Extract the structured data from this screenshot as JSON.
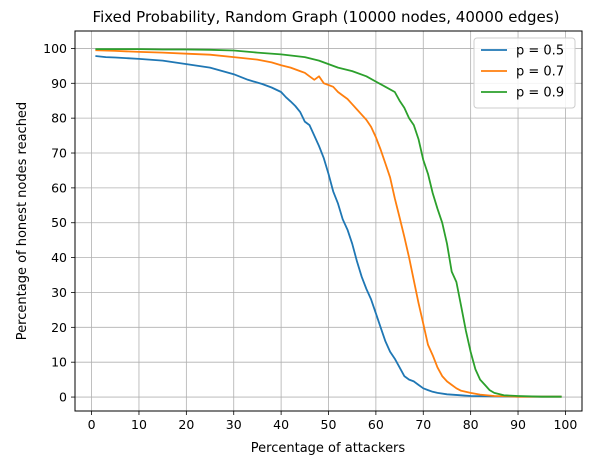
{
  "chart_data": {
    "type": "line",
    "title": "Fixed Probability, Random Graph (10000 nodes, 40000 edges)",
    "xlabel": "Percentage of attackers",
    "ylabel": "Percentage of honest nodes reached",
    "xlim": [
      -3.5,
      103.5
    ],
    "ylim": [
      -4,
      105
    ],
    "xticks": [
      0,
      10,
      20,
      30,
      40,
      50,
      60,
      70,
      80,
      90,
      100
    ],
    "yticks": [
      0,
      10,
      20,
      30,
      40,
      50,
      60,
      70,
      80,
      90,
      100
    ],
    "grid": true,
    "legend_position": "top-right",
    "series": [
      {
        "name": "p = 0.5",
        "color": "#1f77b4",
        "x": [
          1,
          3,
          5,
          10,
          15,
          20,
          25,
          30,
          33,
          36,
          38,
          40,
          41,
          42,
          43,
          44,
          45,
          46,
          47,
          48,
          49,
          50,
          51,
          52,
          53,
          54,
          55,
          56,
          57,
          58,
          59,
          60,
          61,
          62,
          63,
          64,
          65,
          66,
          67,
          68,
          69,
          70,
          71,
          72,
          73,
          75,
          78,
          80,
          85,
          90,
          95,
          99
        ],
        "values": [
          97.8,
          97.5,
          97.4,
          97.0,
          96.5,
          95.5,
          94.5,
          92.6,
          91.0,
          89.8,
          88.8,
          87.5,
          86.0,
          84.8,
          83.5,
          81.8,
          79.0,
          78.0,
          75.0,
          72.0,
          68.5,
          64.0,
          59.0,
          55.5,
          51.0,
          48.0,
          44.0,
          39.0,
          34.5,
          31.0,
          28.0,
          24.0,
          20.0,
          16.0,
          13.0,
          11.0,
          8.5,
          6.0,
          5.0,
          4.5,
          3.5,
          2.5,
          2.0,
          1.5,
          1.2,
          0.8,
          0.5,
          0.3,
          0.2,
          0.1,
          0.1,
          0.1
        ]
      },
      {
        "name": "p = 0.7",
        "color": "#ff7f0e",
        "x": [
          1,
          5,
          10,
          15,
          20,
          25,
          30,
          35,
          38,
          40,
          42,
          44,
          45,
          46,
          47,
          48,
          49,
          50,
          51,
          52,
          53,
          54,
          55,
          56,
          57,
          58,
          59,
          60,
          61,
          62,
          63,
          64,
          65,
          66,
          67,
          68,
          69,
          70,
          71,
          72,
          73,
          74,
          75,
          76,
          77,
          78,
          80,
          82,
          85,
          88,
          90,
          95,
          99
        ],
        "values": [
          99.5,
          99.3,
          99.0,
          98.8,
          98.5,
          98.2,
          97.5,
          96.8,
          96.0,
          95.2,
          94.5,
          93.5,
          93.0,
          92.0,
          91.0,
          92.0,
          90.0,
          89.5,
          89.0,
          87.5,
          86.5,
          85.5,
          84.0,
          82.5,
          81.0,
          79.5,
          77.5,
          74.5,
          71.0,
          67.0,
          63.0,
          57.0,
          51.5,
          46.0,
          40.0,
          33.5,
          27.0,
          21.0,
          15.0,
          12.0,
          8.5,
          6.0,
          4.5,
          3.5,
          2.5,
          1.8,
          1.2,
          0.7,
          0.3,
          0.2,
          0.1,
          0.1,
          0.1
        ]
      },
      {
        "name": "p = 0.9",
        "color": "#2ca02c",
        "x": [
          1,
          5,
          10,
          15,
          20,
          25,
          30,
          35,
          40,
          45,
          48,
          50,
          52,
          55,
          58,
          60,
          62,
          64,
          65,
          66,
          67,
          68,
          69,
          70,
          71,
          72,
          73,
          74,
          75,
          76,
          77,
          78,
          79,
          80,
          81,
          82,
          83,
          84,
          85,
          87,
          90,
          95,
          99
        ],
        "values": [
          99.8,
          99.8,
          99.8,
          99.7,
          99.7,
          99.6,
          99.4,
          98.8,
          98.3,
          97.5,
          96.5,
          95.5,
          94.5,
          93.5,
          92.0,
          90.5,
          89.0,
          87.5,
          85.0,
          83.0,
          80.0,
          78.0,
          74.0,
          68.0,
          64.0,
          58.5,
          54.0,
          50.0,
          44.0,
          36.0,
          33.0,
          26.0,
          19.0,
          13.0,
          8.0,
          5.0,
          3.5,
          2.0,
          1.2,
          0.5,
          0.3,
          0.1,
          0.1
        ]
      }
    ]
  }
}
